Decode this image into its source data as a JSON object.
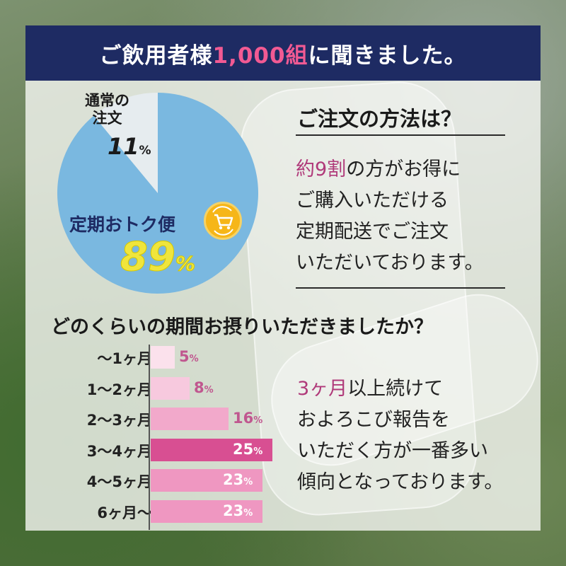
{
  "banner": {
    "prefix": "ご飲用者様",
    "highlight": "1,000組",
    "suffix": "に聞きました。"
  },
  "pie": {
    "regular_label_line1": "通常の",
    "regular_label_line2": "注文",
    "regular_value": "11",
    "subscription_label": "定期おトク便",
    "subscription_value": "89",
    "pct_sign": "%",
    "icon": "cart-refresh-icon"
  },
  "order_section": {
    "heading": "ご注文の方法は？",
    "highlight": "約9割",
    "line1_rest": "の方がお得に",
    "line2": "ご購入いただける",
    "line3": "定期配送でご注文",
    "line4": "いただいております。"
  },
  "period_section": {
    "heading": "どのくらいの期間お摂りいただきましたか？",
    "highlight": "3ヶ月",
    "line1_rest": "以上続けて",
    "line2": "およろこび報告を",
    "line3": "いただく方が一番多い",
    "line4": "傾向となっております。"
  },
  "colors": {
    "navy": "#1e2b63",
    "pie_blue": "#7ab8e0",
    "pie_light": "#e6ecef",
    "subscription_text": "#1e2b63",
    "big_percent": "#f0e53c",
    "bar_max": "#d84f92",
    "bar_high": "#ef97c1",
    "bar_mid": "#f2a9cb",
    "bar_low": "#f7c9de",
    "bar_min": "#fbe1ec",
    "bar_label_dark": "#c0578f",
    "bar_label_light": "#ffffff"
  },
  "chart_data": [
    {
      "type": "pie",
      "title": "",
      "categories": [
        "通常の注文",
        "定期おトク便"
      ],
      "values": [
        11,
        89
      ]
    },
    {
      "type": "bar",
      "orientation": "horizontal",
      "title": "どのくらいの期間お摂りいただきましたか？",
      "categories": [
        "〜1ヶ月",
        "1〜2ヶ月",
        "2〜3ヶ月",
        "3〜4ヶ月",
        "4〜5ヶ月",
        "6ヶ月〜"
      ],
      "values": [
        5,
        8,
        16,
        25,
        23,
        23
      ],
      "value_labels": [
        "5%",
        "8%",
        "16%",
        "25%",
        "23%",
        "23%"
      ],
      "xlim": [
        0,
        25
      ]
    }
  ]
}
